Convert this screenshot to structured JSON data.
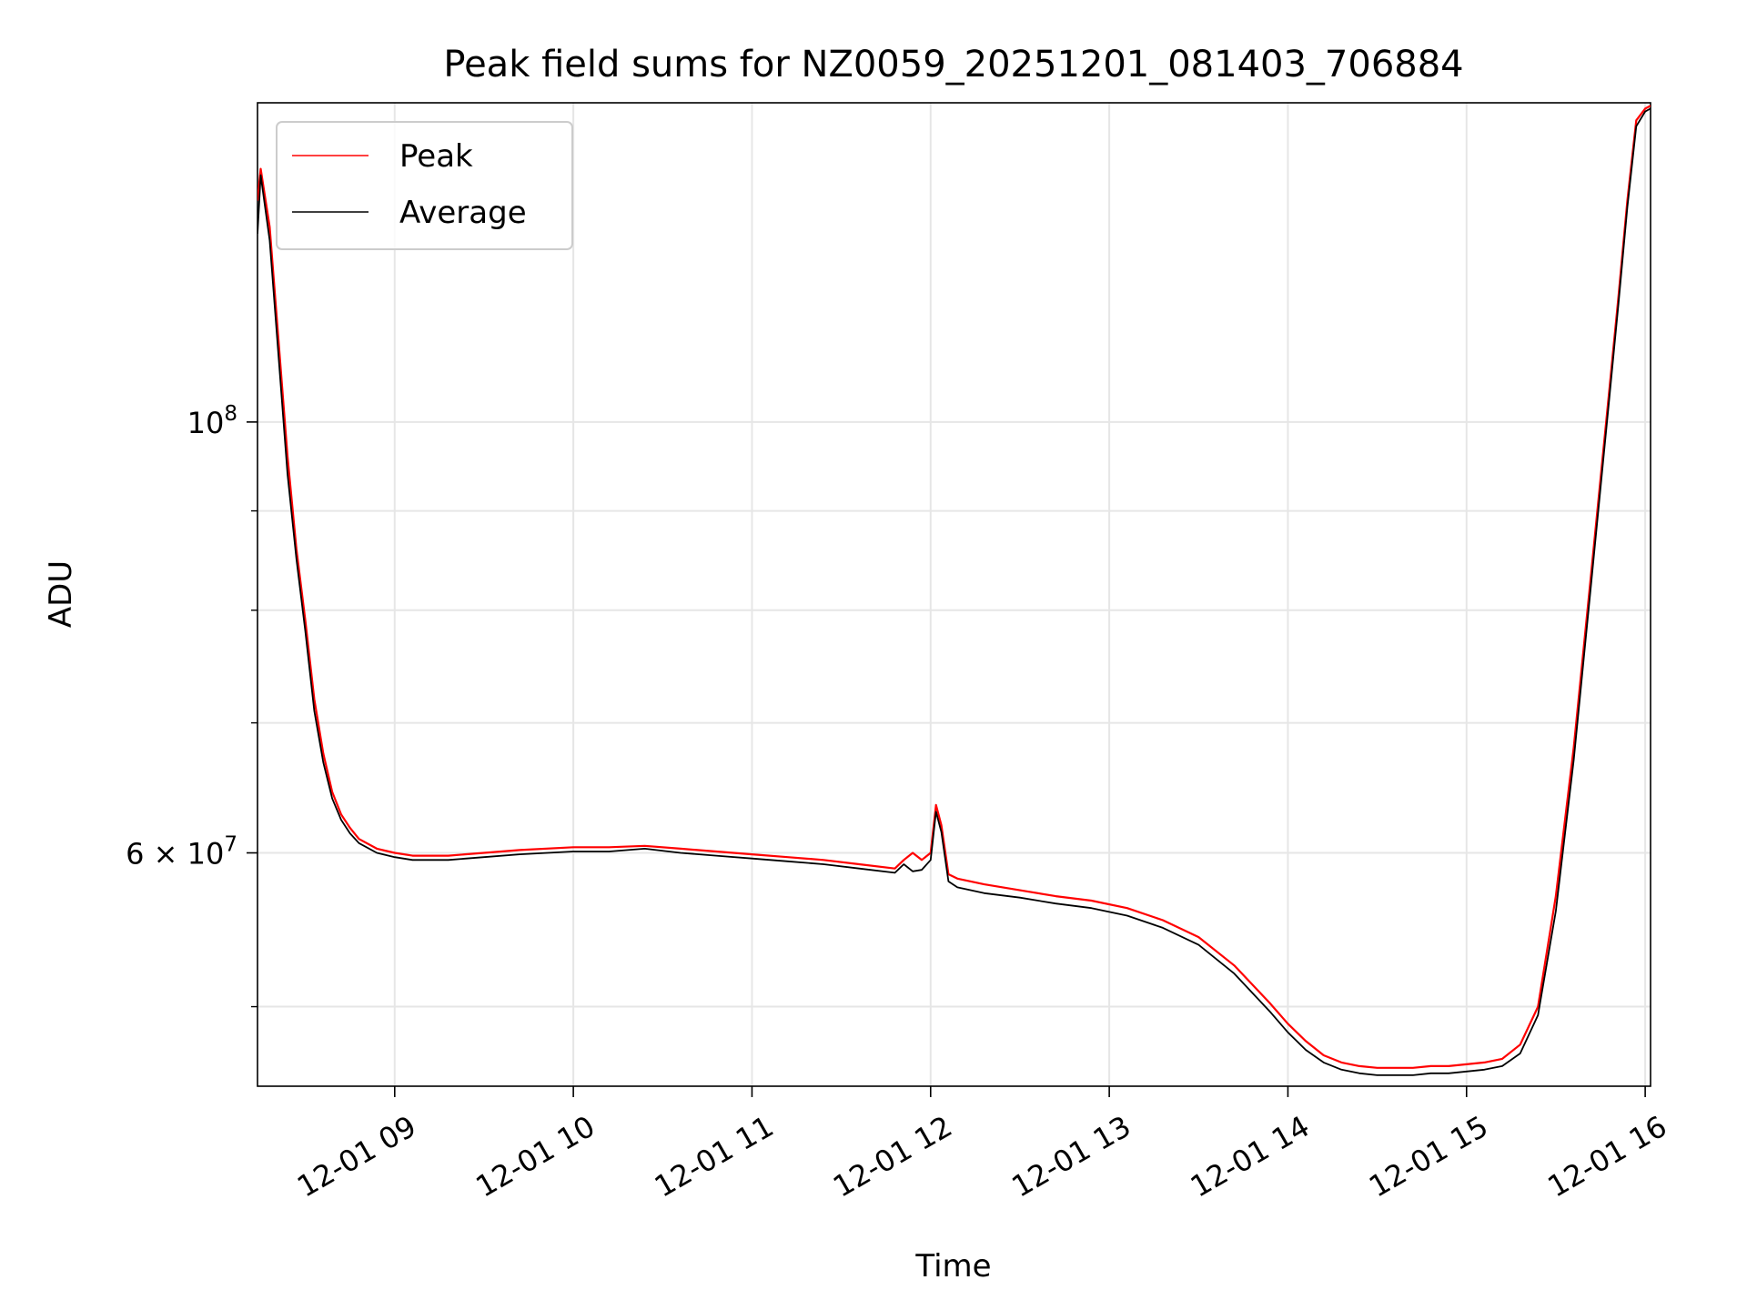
{
  "chart_data": {
    "type": "line",
    "title": "Peak field sums for NZ0059_20251201_081403_706884",
    "xlabel": "Time",
    "ylabel": "ADU",
    "y_scale": "log",
    "x_unit": "hours since 12-01 00:00",
    "xlim": [
      8.232,
      16.03
    ],
    "ylim": [
      45500000,
      146000000
    ],
    "grid": true,
    "legend_position": "upper-left",
    "x_ticks": [
      {
        "value": 9,
        "label": "12-01 09"
      },
      {
        "value": 10,
        "label": "12-01 10"
      },
      {
        "value": 11,
        "label": "12-01 11"
      },
      {
        "value": 12,
        "label": "12-01 12"
      },
      {
        "value": 13,
        "label": "12-01 13"
      },
      {
        "value": 14,
        "label": "12-01 14"
      },
      {
        "value": 15,
        "label": "12-01 15"
      },
      {
        "value": 16,
        "label": "12-01 16"
      }
    ],
    "y_major_ticks": [
      {
        "value": 60000000,
        "base": "6 × 10",
        "exp": "7"
      },
      {
        "value": 100000000,
        "base": "10",
        "exp": "8"
      }
    ],
    "y_minor_ticks": [
      50000000,
      70000000,
      80000000,
      90000000
    ],
    "series": [
      {
        "name": "Peak",
        "color": "#ff0000",
        "x": [
          8.232,
          8.25,
          8.3,
          8.35,
          8.4,
          8.45,
          8.5,
          8.55,
          8.6,
          8.65,
          8.7,
          8.75,
          8.8,
          8.9,
          9.0,
          9.1,
          9.3,
          9.5,
          9.7,
          10.0,
          10.2,
          10.4,
          10.6,
          10.8,
          11.0,
          11.2,
          11.4,
          11.6,
          11.8,
          11.85,
          11.9,
          11.95,
          12.0,
          12.03,
          12.06,
          12.1,
          12.15,
          12.3,
          12.5,
          12.7,
          12.9,
          13.1,
          13.3,
          13.5,
          13.7,
          13.9,
          14.0,
          14.1,
          14.2,
          14.3,
          14.4,
          14.5,
          14.6,
          14.7,
          14.8,
          14.9,
          15.0,
          15.1,
          15.2,
          15.3,
          15.4,
          15.5,
          15.6,
          15.7,
          15.8,
          15.85,
          15.9,
          15.95,
          16.0,
          16.03
        ],
        "y": [
          130000000,
          135000000,
          126000000,
          110000000,
          96000000,
          86000000,
          79000000,
          72000000,
          67500000,
          64500000,
          62800000,
          61800000,
          61000000,
          60300000,
          60000000,
          59800000,
          59800000,
          60000000,
          60200000,
          60400000,
          60400000,
          60500000,
          60300000,
          60100000,
          59900000,
          59700000,
          59500000,
          59200000,
          58900000,
          59500000,
          60000000,
          59500000,
          60000000,
          63500000,
          62000000,
          58500000,
          58200000,
          57800000,
          57400000,
          57000000,
          56700000,
          56200000,
          55400000,
          54300000,
          52500000,
          50200000,
          49000000,
          48000000,
          47200000,
          46800000,
          46600000,
          46500000,
          46500000,
          46500000,
          46600000,
          46600000,
          46700000,
          46800000,
          47000000,
          47800000,
          50000000,
          57000000,
          68000000,
          84000000,
          104000000,
          116000000,
          130000000,
          143000000,
          145000000,
          145500000
        ]
      },
      {
        "name": "Average",
        "color": "#000000",
        "x": [
          8.232,
          8.25,
          8.3,
          8.35,
          8.4,
          8.45,
          8.5,
          8.55,
          8.6,
          8.65,
          8.7,
          8.75,
          8.8,
          8.9,
          9.0,
          9.1,
          9.3,
          9.5,
          9.7,
          10.0,
          10.2,
          10.4,
          10.6,
          10.8,
          11.0,
          11.2,
          11.4,
          11.6,
          11.8,
          11.85,
          11.9,
          11.95,
          12.0,
          12.03,
          12.06,
          12.1,
          12.15,
          12.3,
          12.5,
          12.7,
          12.9,
          13.1,
          13.3,
          13.5,
          13.7,
          13.9,
          14.0,
          14.1,
          14.2,
          14.3,
          14.4,
          14.5,
          14.6,
          14.7,
          14.8,
          14.9,
          15.0,
          15.1,
          15.2,
          15.3,
          15.4,
          15.5,
          15.6,
          15.7,
          15.8,
          15.85,
          15.9,
          15.95,
          16.0,
          16.03
        ],
        "y": [
          125000000,
          134000000,
          124000000,
          108000000,
          94000000,
          85000000,
          78000000,
          71000000,
          66800000,
          64000000,
          62400000,
          61400000,
          60700000,
          60000000,
          59700000,
          59500000,
          59500000,
          59700000,
          59900000,
          60100000,
          60100000,
          60300000,
          60000000,
          59800000,
          59600000,
          59400000,
          59200000,
          58900000,
          58600000,
          59200000,
          58700000,
          58800000,
          59500000,
          63000000,
          61500000,
          58000000,
          57600000,
          57200000,
          56900000,
          56500000,
          56200000,
          55700000,
          54900000,
          53800000,
          52000000,
          49700000,
          48500000,
          47500000,
          46800000,
          46400000,
          46200000,
          46100000,
          46100000,
          46100000,
          46200000,
          46200000,
          46300000,
          46400000,
          46600000,
          47300000,
          49500000,
          56000000,
          67000000,
          83000000,
          103000000,
          115000000,
          129000000,
          142000000,
          144500000,
          145000000
        ]
      }
    ]
  }
}
